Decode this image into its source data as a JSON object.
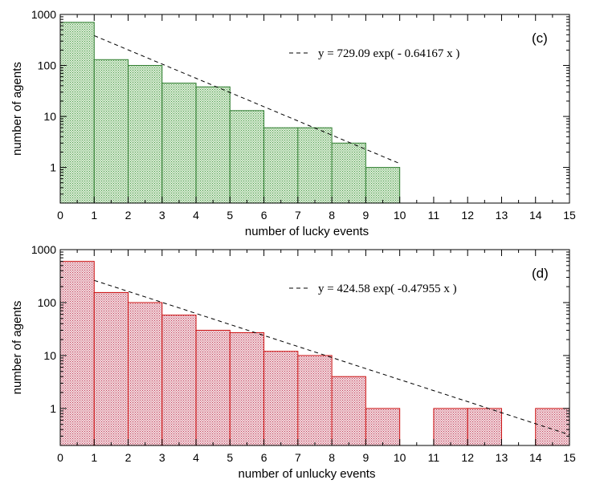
{
  "chart_data": [
    {
      "type": "bar",
      "panel": "(c)",
      "xlabel": "number of lucky events",
      "ylabel": "number of agents",
      "xlim": [
        0,
        15
      ],
      "ylim": [
        0.2,
        1000
      ],
      "yscale": "log",
      "x_ticks": [
        "0",
        "1",
        "2",
        "3",
        "4",
        "5",
        "6",
        "7",
        "8",
        "9",
        "10",
        "11",
        "12",
        "13",
        "14",
        "15"
      ],
      "y_ticks": [
        "1000",
        "100",
        "10",
        "1"
      ],
      "bar_color": "#2e7d2e",
      "bar_fill": "#c8e3c2",
      "bins": [
        0,
        1,
        2,
        3,
        4,
        5,
        6,
        7,
        8,
        9
      ],
      "values": [
        700,
        130,
        100,
        45,
        38,
        13,
        6,
        6,
        3,
        1
      ],
      "fit": {
        "a": 729.09,
        "b": 0.64167,
        "x_range": [
          1,
          10
        ]
      },
      "legend": "y = 729.09 exp( - 0.64167 x )"
    },
    {
      "type": "bar",
      "panel": "(d)",
      "xlabel": "number of unlucky events",
      "ylabel": "number of agents",
      "xlim": [
        0,
        15
      ],
      "ylim": [
        0.2,
        1000
      ],
      "yscale": "log",
      "x_ticks": [
        "0",
        "1",
        "2",
        "3",
        "4",
        "5",
        "6",
        "7",
        "8",
        "9",
        "10",
        "11",
        "12",
        "13",
        "14",
        "15"
      ],
      "y_ticks": [
        "1000",
        "100",
        "10",
        "1"
      ],
      "bar_color": "#cc1010",
      "bar_fill": "#ecc4cc",
      "bins": [
        0,
        1,
        2,
        3,
        4,
        5,
        6,
        7,
        8,
        9,
        11,
        12,
        14
      ],
      "values": [
        600,
        155,
        100,
        58,
        30,
        27,
        12,
        10,
        4,
        1,
        1,
        1,
        1
      ],
      "fit": {
        "a": 424.58,
        "b": 0.47955,
        "x_range": [
          1,
          15
        ]
      },
      "legend": "y = 424.58 exp( -0.47955 x )"
    }
  ]
}
